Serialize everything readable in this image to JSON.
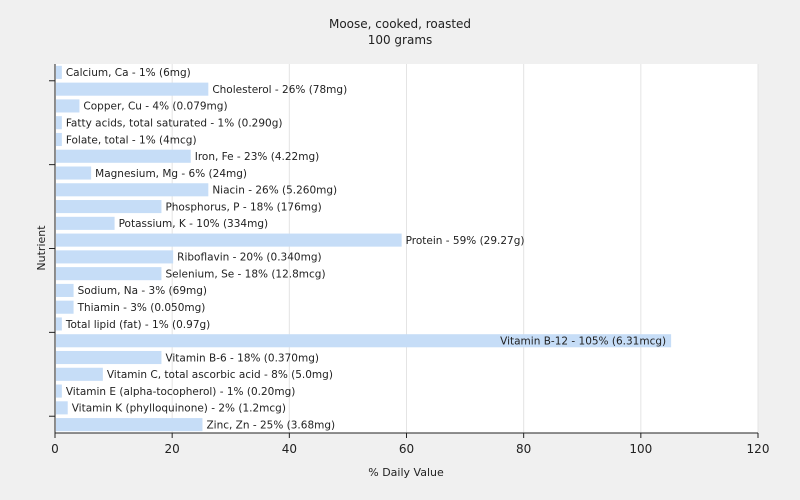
{
  "chart_data": {
    "type": "bar",
    "orientation": "horizontal",
    "title": "Moose, cooked, roasted",
    "subtitle": "100 grams",
    "xlabel": "% Daily Value",
    "ylabel": "Nutrient",
    "xlim": [
      0,
      120
    ],
    "xticks": [
      0,
      20,
      40,
      60,
      80,
      100,
      120
    ],
    "grid": true,
    "bar_color": "#c6ddf7",
    "categories": [
      "Calcium, Ca",
      "Cholesterol",
      "Copper, Cu",
      "Fatty acids, total saturated",
      "Folate, total",
      "Iron, Fe",
      "Magnesium, Mg",
      "Niacin",
      "Phosphorus, P",
      "Potassium, K",
      "Protein",
      "Riboflavin",
      "Selenium, Se",
      "Sodium, Na",
      "Thiamin",
      "Total lipid (fat)",
      "Vitamin B-12",
      "Vitamin B-6",
      "Vitamin C, total ascorbic acid",
      "Vitamin E (alpha-tocopherol)",
      "Vitamin K (phylloquinone)",
      "Zinc, Zn"
    ],
    "values": [
      1,
      26,
      4,
      1,
      1,
      23,
      6,
      26,
      18,
      10,
      59,
      20,
      18,
      3,
      3,
      1,
      105,
      18,
      8,
      1,
      2,
      25
    ],
    "labels": [
      "Calcium, Ca - 1% (6mg)",
      "Cholesterol - 26% (78mg)",
      "Copper, Cu - 4% (0.079mg)",
      "Fatty acids, total saturated - 1% (0.290g)",
      "Folate, total - 1% (4mcg)",
      "Iron, Fe - 23% (4.22mg)",
      "Magnesium, Mg - 6% (24mg)",
      "Niacin - 26% (5.260mg)",
      "Phosphorus, P - 18% (176mg)",
      "Potassium, K - 10% (334mg)",
      "Protein - 59% (29.27g)",
      "Riboflavin - 20% (0.340mg)",
      "Selenium, Se - 18% (12.8mcg)",
      "Sodium, Na - 3% (69mg)",
      "Thiamin - 3% (0.050mg)",
      "Total lipid (fat) - 1% (0.97g)",
      "Vitamin B-12 - 105% (6.31mcg)",
      "Vitamin B-6 - 18% (0.370mg)",
      "Vitamin C, total ascorbic acid - 8% (5.0mg)",
      "Vitamin E (alpha-tocopherol) - 1% (0.20mg)",
      "Vitamin K (phylloquinone) - 2% (1.2mcg)",
      "Zinc, Zn - 25% (3.68mg)"
    ]
  }
}
